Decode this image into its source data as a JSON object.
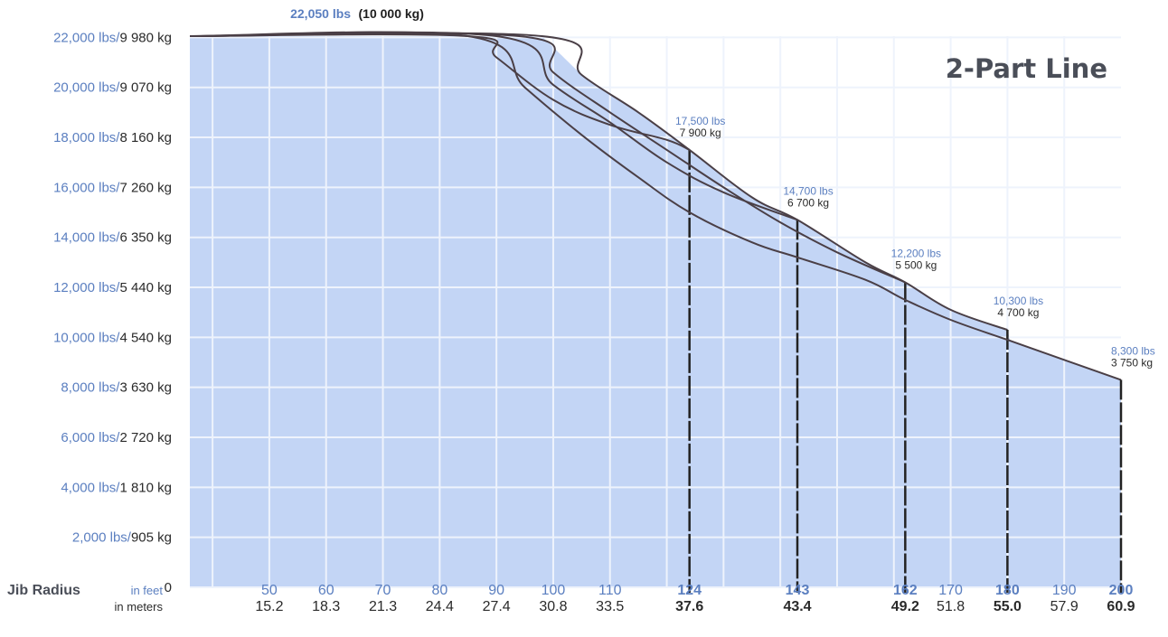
{
  "chart_data": {
    "type": "area",
    "title": "2-Part Line",
    "max_capacity": {
      "lbs": "22,050 lbs",
      "kg": "(10 000 kg)"
    },
    "y_axis": {
      "ticks_lbs": [
        0,
        2000,
        4000,
        6000,
        8000,
        10000,
        12000,
        14000,
        16000,
        18000,
        20000,
        22000
      ],
      "tick_labels": [
        {
          "lbs": "0",
          "kg": ""
        },
        {
          "lbs": "2,000 lbs/",
          "kg": "905 kg"
        },
        {
          "lbs": "4,000 lbs/",
          "kg": "1 810 kg"
        },
        {
          "lbs": "6,000 lbs/",
          "kg": "2 720 kg"
        },
        {
          "lbs": "8,000 lbs/",
          "kg": "3 630 kg"
        },
        {
          "lbs": "10,000 lbs/",
          "kg": "4 540 kg"
        },
        {
          "lbs": "12,000 lbs/",
          "kg": "5 440 kg"
        },
        {
          "lbs": "14,000 lbs/",
          "kg": "6 350 kg"
        },
        {
          "lbs": "16,000 lbs/",
          "kg": "7 260 kg"
        },
        {
          "lbs": "18,000 lbs/",
          "kg": "8 160 kg"
        },
        {
          "lbs": "20,000 lbs/",
          "kg": "9 070 kg"
        },
        {
          "lbs": "22,000 lbs/",
          "kg": "9 980 kg"
        }
      ],
      "ylim": [
        0,
        22050
      ]
    },
    "x_axis": {
      "label": "Jib Radius",
      "unit_feet": "in feet",
      "unit_meters": "in meters",
      "xlim": [
        36,
        200
      ],
      "ticks": [
        {
          "ft": "50",
          "m": "15.2",
          "bold": false
        },
        {
          "ft": "60",
          "m": "18.3",
          "bold": false
        },
        {
          "ft": "70",
          "m": "21.3",
          "bold": false
        },
        {
          "ft": "80",
          "m": "24.4",
          "bold": false
        },
        {
          "ft": "90",
          "m": "27.4",
          "bold": false
        },
        {
          "ft": "100",
          "m": "30.8",
          "bold": false
        },
        {
          "ft": "110",
          "m": "33.5",
          "bold": false
        },
        {
          "ft": "124",
          "m": "37.6",
          "bold": true
        },
        {
          "ft": "143",
          "m": "43.4",
          "bold": true
        },
        {
          "ft": "162",
          "m": "49.2",
          "bold": true
        },
        {
          "ft": "170",
          "m": "51.8",
          "bold": false
        },
        {
          "ft": "180",
          "m": "55.0",
          "bold": true
        },
        {
          "ft": "190",
          "m": "57.9",
          "bold": false
        },
        {
          "ft": "200",
          "m": "60.9",
          "bold": true
        }
      ]
    },
    "grid": true,
    "fill_color": "#c3d5f5",
    "grid_color": "#eef3fc",
    "line_color": "#4a3f46",
    "series": [
      {
        "jib_ft": 124,
        "end_lbs": 17500,
        "x": [
          36,
          85,
          90,
          100,
          110,
          120,
          124
        ],
        "y": [
          22050,
          22050,
          21200,
          19500,
          18500,
          17900,
          17500
        ]
      },
      {
        "jib_ft": 143,
        "end_lbs": 14700,
        "x": [
          36,
          90,
          100,
          110,
          120,
          130,
          143
        ],
        "y": [
          22050,
          22050,
          20100,
          18600,
          17000,
          15800,
          14700
        ]
      },
      {
        "jib_ft": 162,
        "end_lbs": 12200,
        "x": [
          36,
          94,
          100,
          110,
          120,
          130,
          140,
          150,
          162
        ],
        "y": [
          22050,
          22050,
          20600,
          19000,
          17500,
          16000,
          14600,
          13400,
          12200
        ]
      },
      {
        "jib_ft": 180,
        "end_lbs": 10300,
        "x": [
          36,
          98,
          105,
          115,
          124,
          135,
          143,
          155,
          162,
          170,
          180
        ],
        "y": [
          22050,
          22050,
          20500,
          19000,
          17500,
          15600,
          14700,
          13000,
          12200,
          11100,
          10300
        ]
      },
      {
        "jib_ft": 200,
        "end_lbs": 8300,
        "x": [
          36,
          85,
          95,
          105,
          115,
          124,
          135,
          143,
          155,
          162,
          170,
          180,
          190,
          200
        ],
        "y": [
          22050,
          22050,
          20000,
          18100,
          16400,
          15000,
          13800,
          13200,
          12300,
          11500,
          10700,
          9900,
          9100,
          8300
        ]
      }
    ],
    "annotations": [
      {
        "x": 124,
        "y": 17500,
        "lbs": "17,500 lbs",
        "kg": "7 900 kg"
      },
      {
        "x": 143,
        "y": 14700,
        "lbs": "14,700 lbs",
        "kg": "6 700 kg"
      },
      {
        "x": 162,
        "y": 12200,
        "lbs": "12,200 lbs",
        "kg": "5 500 kg"
      },
      {
        "x": 180,
        "y": 10300,
        "lbs": "10,300 lbs",
        "kg": "4 700 kg"
      },
      {
        "x": 200,
        "y": 8300,
        "lbs": "8,300 lbs",
        "kg": "3 750 kg"
      }
    ]
  }
}
